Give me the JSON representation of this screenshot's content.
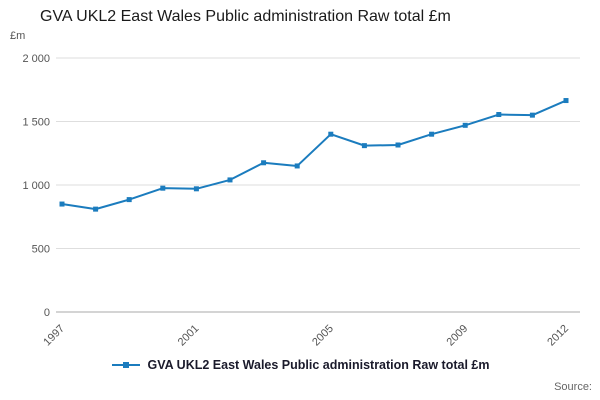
{
  "source": {
    "label": "Source:"
  },
  "chart_data": {
    "type": "line",
    "title": "GVA UKL2 East Wales Public administration Raw total £m",
    "unit_label": "£m",
    "series_name": "GVA UKL2 East Wales Public administration Raw total £m",
    "x": [
      1997,
      1998,
      1999,
      2000,
      2001,
      2002,
      2003,
      2004,
      2005,
      2006,
      2007,
      2008,
      2009,
      2010,
      2011,
      2012
    ],
    "values": [
      850,
      810,
      885,
      975,
      970,
      1040,
      1175,
      1150,
      1400,
      1310,
      1315,
      1400,
      1470,
      1555,
      1550,
      1665
    ],
    "ylim": [
      0,
      2000
    ],
    "y_ticks": {
      "values": [
        0,
        500,
        1000,
        1500,
        2000
      ],
      "labels": [
        "0",
        "500",
        "1 000",
        "1 500",
        "2 000"
      ]
    },
    "x_tick_years": [
      1997,
      2001,
      2005,
      2009,
      2012
    ],
    "line_color": "#1b7cbe",
    "grid_color": "#dedede",
    "axis_color": "#aaaaaa",
    "grid": true,
    "legend_position": "bottom"
  }
}
